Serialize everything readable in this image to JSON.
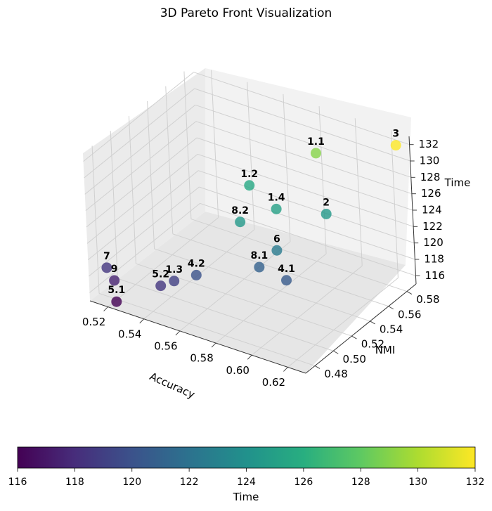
{
  "chart_data": {
    "type": "scatter",
    "title": "3D Pareto Front Visualization",
    "xlabel": "Accuracy",
    "ylabel": "NMI",
    "zlabel": "Time",
    "colorbar_label": "Time",
    "colormap": "viridis",
    "x_ticks": [
      "0.52",
      "0.54",
      "0.56",
      "0.58",
      "0.60",
      "0.62"
    ],
    "y_ticks": [
      "0.48",
      "0.50",
      "0.52",
      "0.54",
      "0.56",
      "0.58"
    ],
    "z_ticks": [
      "116",
      "118",
      "120",
      "122",
      "124",
      "126",
      "128",
      "130",
      "132"
    ],
    "colorbar_ticks": [
      "116",
      "118",
      "120",
      "122",
      "124",
      "126",
      "128",
      "130",
      "132"
    ],
    "clim": [
      116,
      132
    ],
    "points": [
      {
        "label": "3",
        "accuracy": 0.625,
        "nmi": 0.585,
        "time": 132.0
      },
      {
        "label": "1.1",
        "accuracy": 0.585,
        "nmi": 0.575,
        "time": 129.0
      },
      {
        "label": "1.4",
        "accuracy": 0.58,
        "nmi": 0.54,
        "time": 125.0
      },
      {
        "label": "1.2",
        "accuracy": 0.56,
        "nmi": 0.55,
        "time": 125.5
      },
      {
        "label": "2",
        "accuracy": 0.6,
        "nmi": 0.555,
        "time": 124.5
      },
      {
        "label": "8.2",
        "accuracy": 0.57,
        "nmi": 0.52,
        "time": 124.5
      },
      {
        "label": "6",
        "accuracy": 0.59,
        "nmi": 0.52,
        "time": 122.5
      },
      {
        "label": "8.1",
        "accuracy": 0.585,
        "nmi": 0.51,
        "time": 121.0
      },
      {
        "label": "4.1",
        "accuracy": 0.6,
        "nmi": 0.51,
        "time": 120.5
      },
      {
        "label": "4.2",
        "accuracy": 0.56,
        "nmi": 0.49,
        "time": 120.0
      },
      {
        "label": "1.3",
        "accuracy": 0.55,
        "nmi": 0.485,
        "time": 119.0
      },
      {
        "label": "5.2",
        "accuracy": 0.545,
        "nmi": 0.48,
        "time": 118.5
      },
      {
        "label": "7",
        "accuracy": 0.515,
        "nmi": 0.48,
        "time": 118.5
      },
      {
        "label": "9",
        "accuracy": 0.52,
        "nmi": 0.478,
        "time": 117.5
      },
      {
        "label": "5.1",
        "accuracy": 0.525,
        "nmi": 0.47,
        "time": 116.0
      }
    ]
  }
}
